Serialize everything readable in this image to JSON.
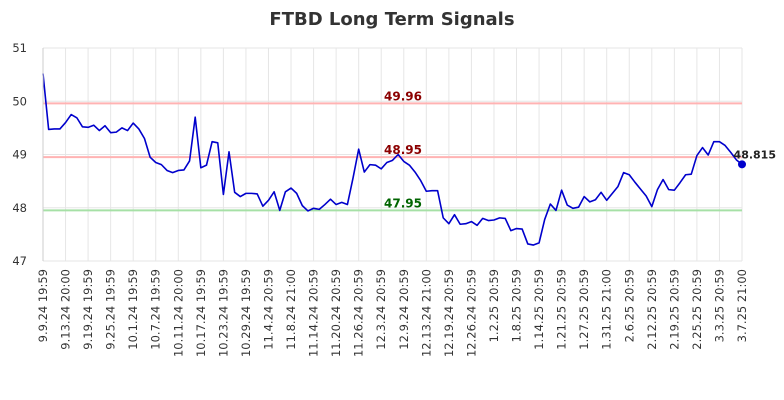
{
  "chart_data": {
    "type": "line",
    "title": "FTBD Long Term Signals",
    "xlabel": "",
    "ylabel": "",
    "ylim": [
      47,
      51
    ],
    "yticks": [
      "47",
      "48",
      "49",
      "50",
      "51"
    ],
    "grid": true,
    "colors": {
      "line": "#0000cc",
      "upper_ref": "#ffb3b3",
      "mid_ref": "#ffb3b3",
      "lower_ref": "#a6e0a6",
      "upper_label": "#8b0000",
      "mid_label": "#8b0000",
      "lower_label": "#006400",
      "grid": "#e6e6e6"
    },
    "reference_lines": [
      {
        "value": 49.96,
        "label": "49.96"
      },
      {
        "value": 48.95,
        "label": "48.95"
      },
      {
        "value": 47.95,
        "label": "47.95"
      }
    ],
    "last_value_label": "48.815",
    "x_tick_labels": [
      "9.9.24 19:59",
      "9.13.24 20:00",
      "9.19.24 19:59",
      "9.25.24 19:59",
      "10.1.24 19:59",
      "10.7.24 19:59",
      "10.11.24 20:00",
      "10.17.24 19:59",
      "10.23.24 19:59",
      "10.29.24 19:59",
      "11.4.24 20:59",
      "11.8.24 21:00",
      "11.14.24 20:59",
      "11.20.24 20:59",
      "11.26.24 20:59",
      "12.3.24 20:59",
      "12.9.24 20:59",
      "12.13.24 21:00",
      "12.19.24 20:59",
      "12.26.24 20:59",
      "1.2.25 20:59",
      "1.8.25 20:59",
      "1.14.25 20:59",
      "1.21.25 20:59",
      "1.27.25 20:59",
      "1.31.25 21:00",
      "2.6.25 20:59",
      "2.12.25 20:59",
      "2.19.25 20:59",
      "2.25.25 20:59",
      "3.3.25 20:59",
      "3.7.25 21:00"
    ],
    "series": [
      {
        "values": [
          50.52,
          49.47,
          49.48,
          49.48,
          49.6,
          49.75,
          49.69,
          49.52,
          49.51,
          49.55,
          49.45,
          49.54,
          49.41,
          49.42,
          49.5,
          49.45,
          49.59,
          49.48,
          49.3,
          48.95,
          48.85,
          48.81,
          48.7,
          48.66,
          48.7,
          48.71,
          48.88,
          49.7,
          48.75,
          48.8,
          49.24,
          49.22,
          48.25,
          49.05,
          48.29,
          48.21,
          48.27,
          48.27,
          48.26,
          48.03,
          48.14,
          48.3,
          47.95,
          48.3,
          48.37,
          48.27,
          48.04,
          47.94,
          47.99,
          47.97,
          48.06,
          48.16,
          48.06,
          48.1,
          48.06,
          48.56,
          49.1,
          48.67,
          48.81,
          48.8,
          48.73,
          48.85,
          48.89,
          49.0,
          48.87,
          48.8,
          48.67,
          48.51,
          48.31,
          48.32,
          48.32,
          47.81,
          47.7,
          47.87,
          47.69,
          47.7,
          47.74,
          47.67,
          47.8,
          47.76,
          47.77,
          47.81,
          47.8,
          47.57,
          47.61,
          47.6,
          47.32,
          47.3,
          47.34,
          47.78,
          48.07,
          47.95,
          48.33,
          48.05,
          47.99,
          48.01,
          48.21,
          48.11,
          48.15,
          48.29,
          48.14,
          48.27,
          48.4,
          48.66,
          48.62,
          48.48,
          48.35,
          48.22,
          48.02,
          48.34,
          48.53,
          48.34,
          48.33,
          48.47,
          48.62,
          48.63,
          48.98,
          49.13,
          48.99,
          49.24,
          49.24,
          49.17,
          49.04,
          48.9,
          48.815
        ]
      }
    ]
  }
}
